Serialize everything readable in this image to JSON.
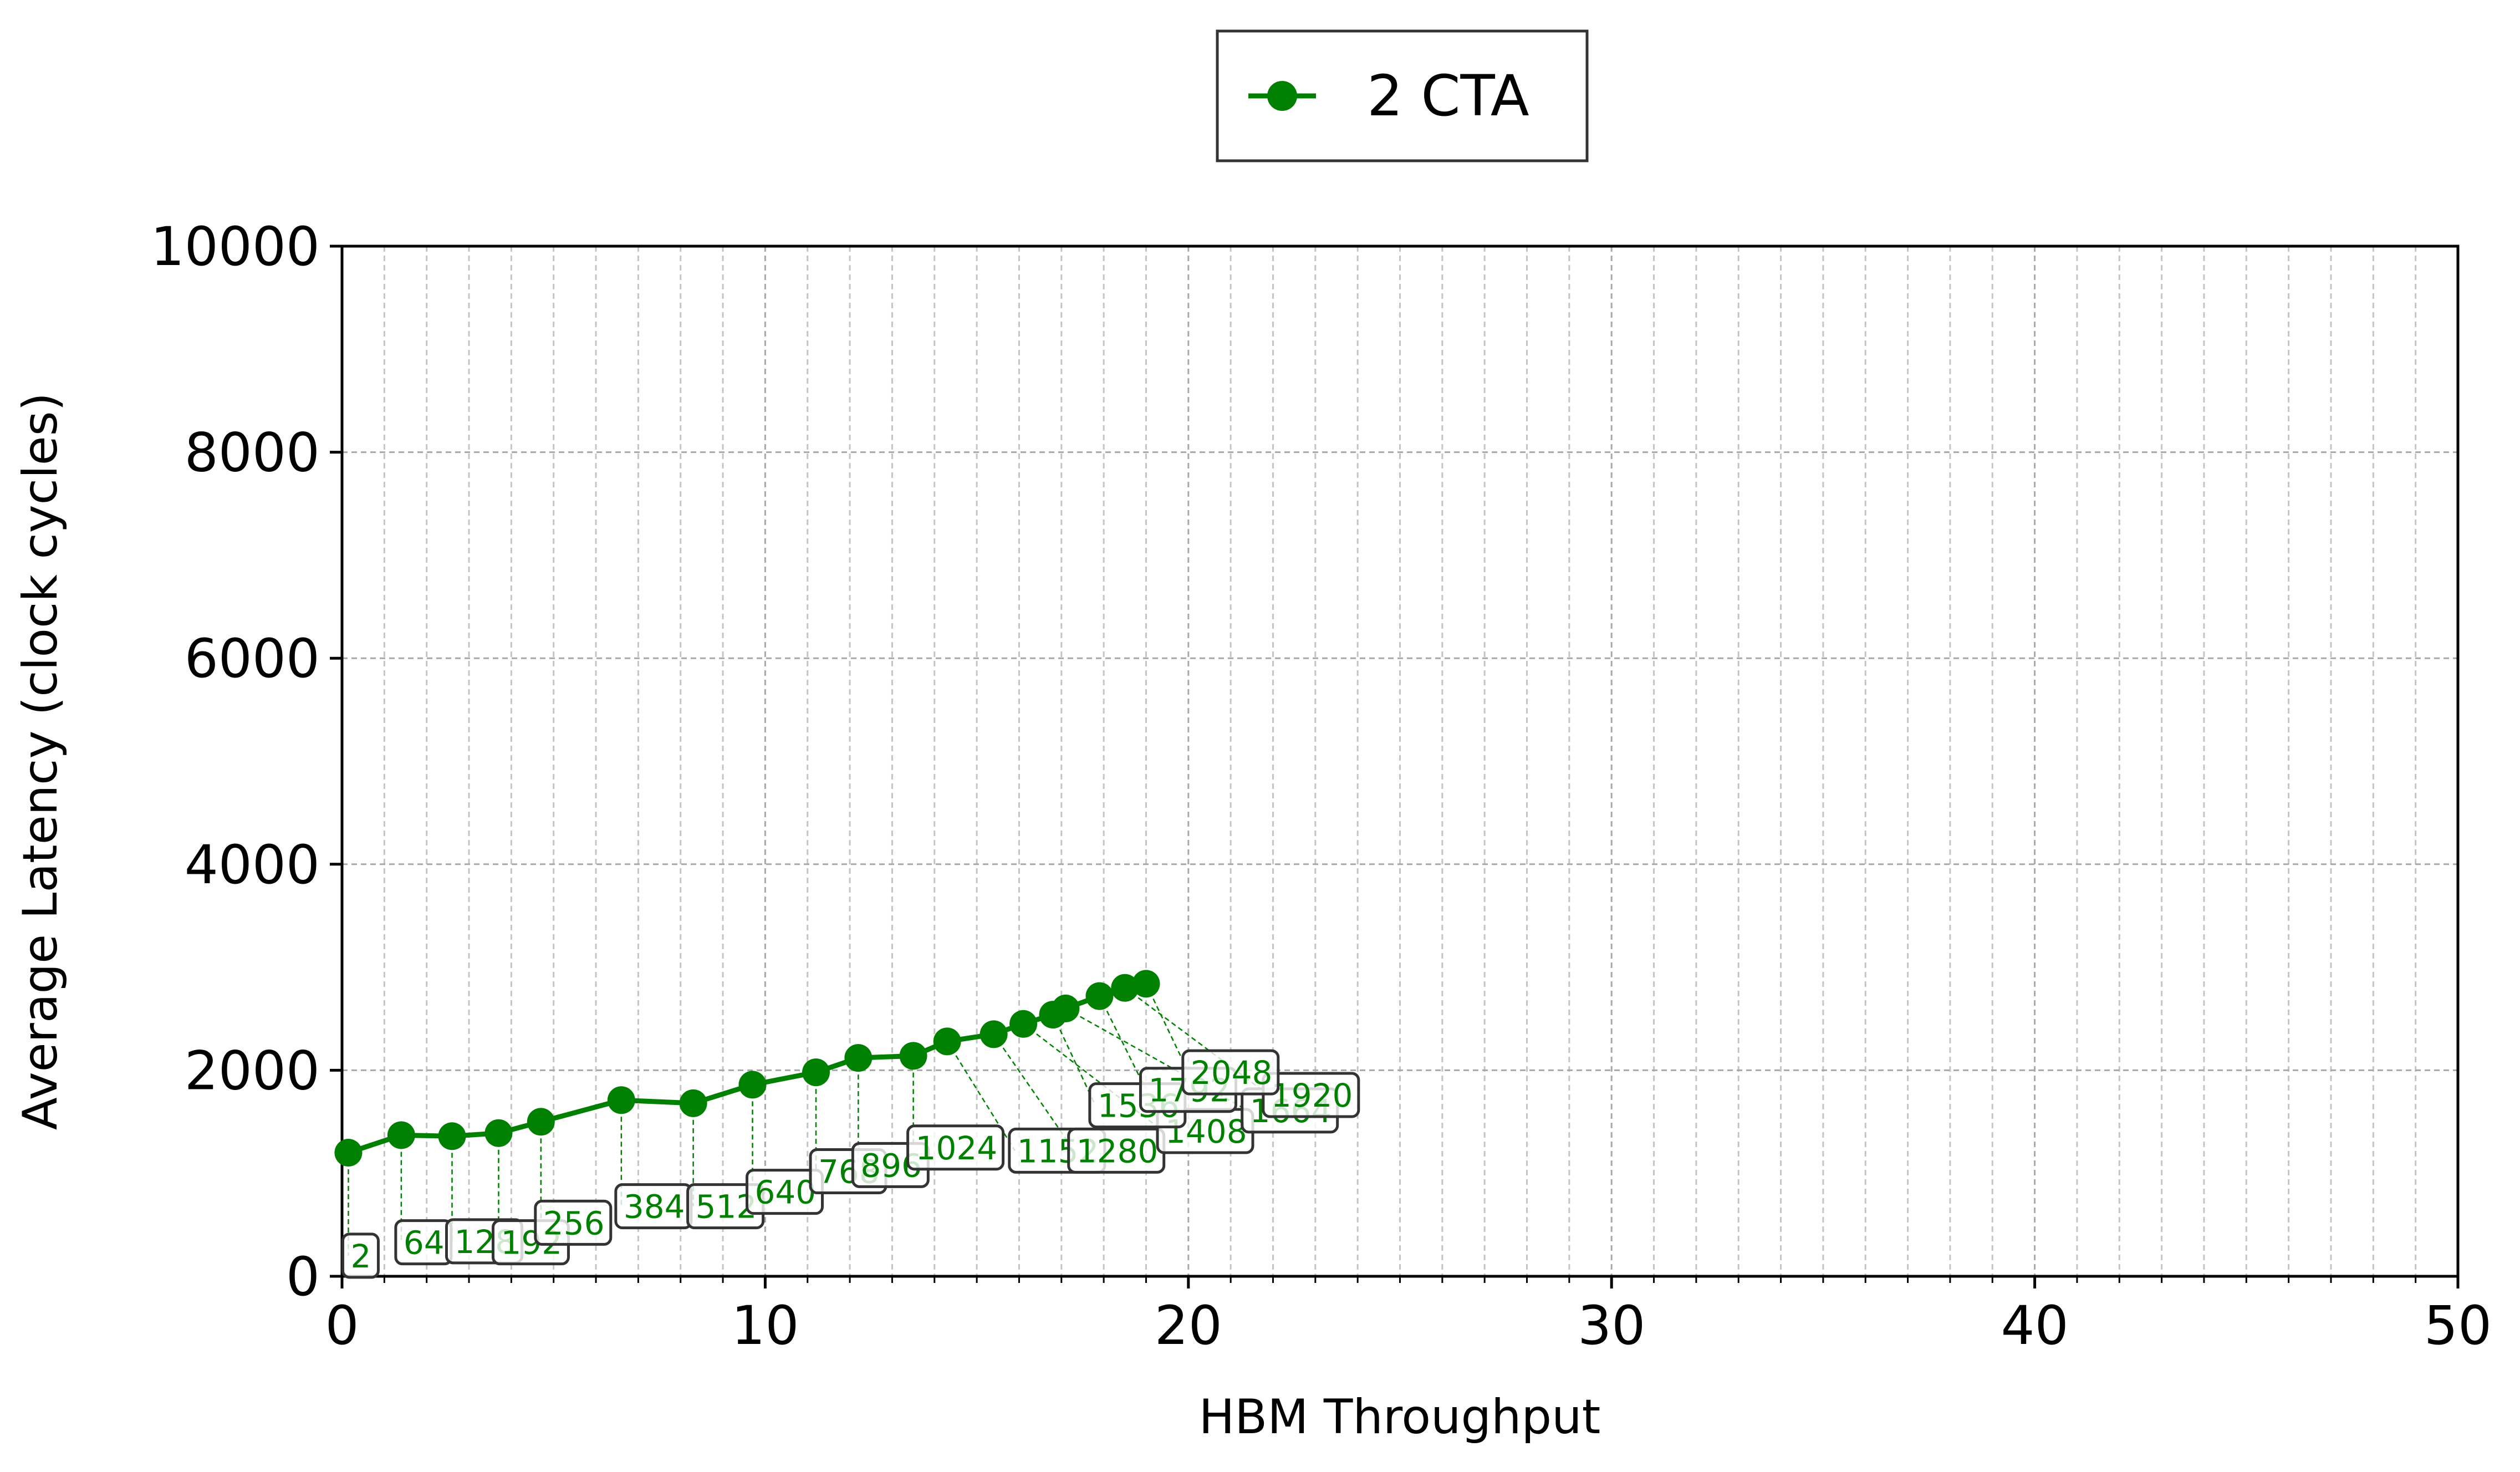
{
  "chart_data": {
    "type": "line",
    "title": "",
    "xlabel": "HBM Throughput",
    "ylabel": "Average Latency (clock cycles)",
    "xlim": [
      0,
      50
    ],
    "ylim": [
      0,
      10000
    ],
    "xticks": [
      "0",
      "10",
      "20",
      "30",
      "40",
      "50"
    ],
    "yticks": [
      "0",
      "2000",
      "4000",
      "6000",
      "8000",
      "10000"
    ],
    "grid": "on (major and minor, dashed)",
    "legend": "top-center",
    "series": [
      {
        "name": "2 CTA",
        "color": "#008000",
        "marker": "circle",
        "x": [
          0.15,
          1.4,
          2.6,
          3.7,
          4.7,
          6.6,
          8.3,
          9.7,
          11.2,
          12.2,
          13.5,
          14.3,
          15.4,
          16.1,
          16.8,
          17.1,
          17.9,
          18.5,
          19.0
        ],
        "y": [
          1200,
          1370,
          1360,
          1390,
          1500,
          1710,
          1680,
          1860,
          1980,
          2120,
          2140,
          2280,
          2350,
          2450,
          2540,
          2600,
          2720,
          2800,
          2840
        ],
        "labels": [
          "2",
          "64",
          "128",
          "192",
          "256",
          "384",
          "512",
          "640",
          "768",
          "896",
          "1024",
          "1152",
          "1280",
          "1408",
          "1536",
          "1664",
          "1792",
          "1920",
          "2048"
        ]
      }
    ],
    "annotations": {
      "label_positions": [
        [
          0.15,
          200
        ],
        [
          1.4,
          330
        ],
        [
          2.6,
          340
        ],
        [
          3.7,
          330
        ],
        [
          4.7,
          520
        ],
        [
          6.6,
          680
        ],
        [
          8.3,
          680
        ],
        [
          9.7,
          820
        ],
        [
          11.2,
          1020
        ],
        [
          12.2,
          1080
        ],
        [
          13.5,
          1250
        ],
        [
          15.9,
          1220
        ],
        [
          17.3,
          1220
        ],
        [
          19.4,
          1410
        ],
        [
          17.8,
          1660
        ],
        [
          21.4,
          1610
        ],
        [
          19.0,
          1810
        ],
        [
          21.9,
          1760
        ],
        [
          20.0,
          1980
        ]
      ]
    }
  }
}
